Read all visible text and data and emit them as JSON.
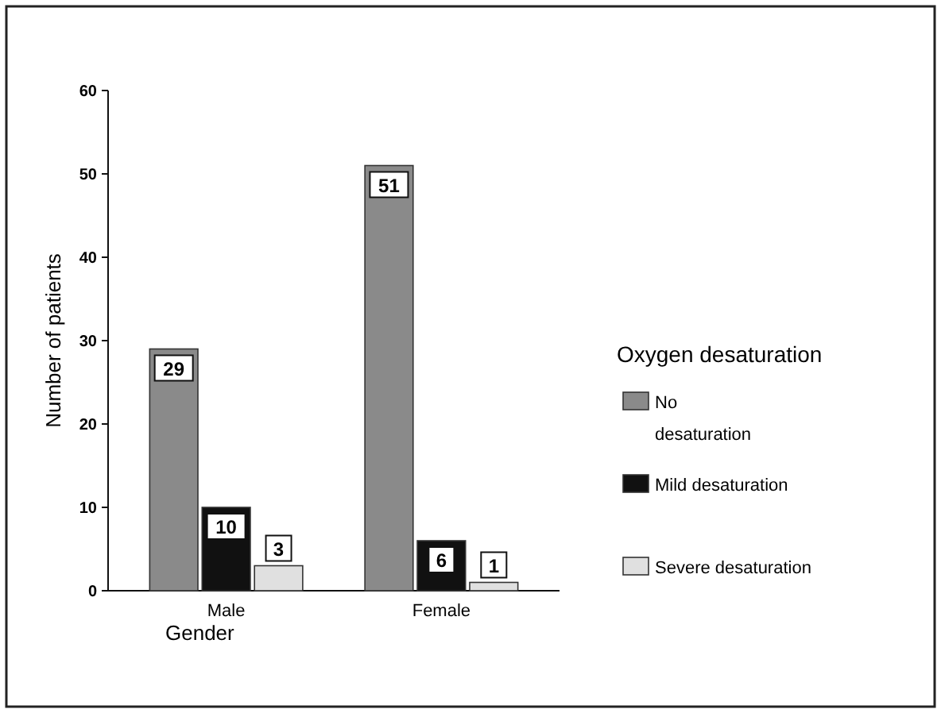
{
  "chart_data": {
    "type": "bar",
    "xlabel": "Gender",
    "ylabel": "Number of patients",
    "legend_title": "Oxygen desaturation",
    "categories": [
      "Male",
      "Female"
    ],
    "series": [
      {
        "name": "No desaturation",
        "color": "#8a8a8a",
        "values": [
          29,
          51
        ]
      },
      {
        "name": "Mild desaturation",
        "color": "#111111",
        "values": [
          10,
          6
        ]
      },
      {
        "name": "Severe desaturation",
        "color": "#e0e0e0",
        "values": [
          3,
          1
        ]
      }
    ],
    "ylim": [
      0,
      60
    ],
    "yticks": [
      0,
      10,
      20,
      30,
      40,
      50,
      60
    ],
    "data_labels": true,
    "legend": "right",
    "grid": false
  }
}
